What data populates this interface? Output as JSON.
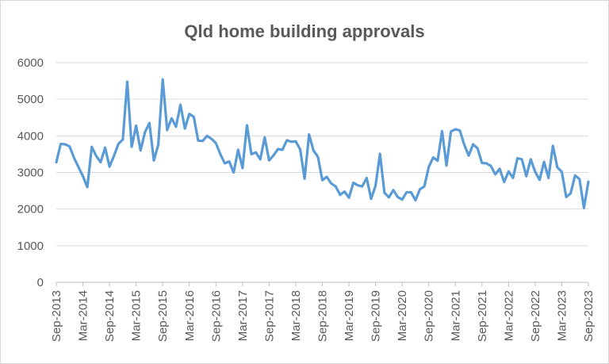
{
  "chart_data": {
    "type": "line",
    "title": "Qld home building approvals",
    "xlabel": "",
    "ylabel": "",
    "ylim": [
      0,
      6000
    ],
    "yticks": [
      0,
      1000,
      2000,
      3000,
      4000,
      5000,
      6000
    ],
    "ytick_labels": [
      "0",
      "1000",
      "2000",
      "3000",
      "4000",
      "5000",
      "6000"
    ],
    "grid": true,
    "legend": "none",
    "line_color": "#5b9bd5",
    "xtick_labels": [
      "Sep-2013",
      "Mar-2014",
      "Sep-2014",
      "Mar-2015",
      "Sep-2015",
      "Mar-2016",
      "Sep-2016",
      "Mar-2017",
      "Sep-2017",
      "Mar-2018",
      "Sep-2018",
      "Mar-2019",
      "Sep-2019",
      "Mar-2020",
      "Sep-2020",
      "Mar-2021",
      "Sep-2021",
      "Mar-2022",
      "Sep-2022",
      "Mar-2023",
      "Sep-2023"
    ],
    "x": [
      "2013-09",
      "2013-10",
      "2013-11",
      "2013-12",
      "2014-01",
      "2014-02",
      "2014-03",
      "2014-04",
      "2014-05",
      "2014-06",
      "2014-07",
      "2014-08",
      "2014-09",
      "2014-10",
      "2014-11",
      "2014-12",
      "2015-01",
      "2015-02",
      "2015-03",
      "2015-04",
      "2015-05",
      "2015-06",
      "2015-07",
      "2015-08",
      "2015-09",
      "2015-10",
      "2015-11",
      "2015-12",
      "2016-01",
      "2016-02",
      "2016-03",
      "2016-04",
      "2016-05",
      "2016-06",
      "2016-07",
      "2016-08",
      "2016-09",
      "2016-10",
      "2016-11",
      "2016-12",
      "2017-01",
      "2017-02",
      "2017-03",
      "2017-04",
      "2017-05",
      "2017-06",
      "2017-07",
      "2017-08",
      "2017-09",
      "2017-10",
      "2017-11",
      "2017-12",
      "2018-01",
      "2018-02",
      "2018-03",
      "2018-04",
      "2018-05",
      "2018-06",
      "2018-07",
      "2018-08",
      "2018-09",
      "2018-10",
      "2018-11",
      "2018-12",
      "2019-01",
      "2019-02",
      "2019-03",
      "2019-04",
      "2019-05",
      "2019-06",
      "2019-07",
      "2019-08",
      "2019-09",
      "2019-10",
      "2019-11",
      "2019-12",
      "2020-01",
      "2020-02",
      "2020-03",
      "2020-04",
      "2020-05",
      "2020-06",
      "2020-07",
      "2020-08",
      "2020-09",
      "2020-10",
      "2020-11",
      "2020-12",
      "2021-01",
      "2021-02",
      "2021-03",
      "2021-04",
      "2021-05",
      "2021-06",
      "2021-07",
      "2021-08",
      "2021-09",
      "2021-10",
      "2021-11",
      "2021-12",
      "2022-01",
      "2022-02",
      "2022-03",
      "2022-04",
      "2022-05",
      "2022-06",
      "2022-07",
      "2022-08",
      "2022-09",
      "2022-10",
      "2022-11",
      "2022-12",
      "2023-01",
      "2023-02",
      "2023-03",
      "2023-04",
      "2023-05",
      "2023-06",
      "2023-07",
      "2023-08",
      "2023-09"
    ],
    "series": [
      {
        "name": "",
        "values": [
          3280,
          3780,
          3770,
          3710,
          3400,
          3150,
          2900,
          2600,
          3700,
          3450,
          3280,
          3680,
          3160,
          3450,
          3780,
          3900,
          5480,
          3700,
          4280,
          3600,
          4100,
          4350,
          3330,
          3760,
          5540,
          4160,
          4480,
          4250,
          4850,
          4200,
          4600,
          4520,
          3870,
          3860,
          4000,
          3920,
          3800,
          3500,
          3250,
          3300,
          3000,
          3620,
          3120,
          4290,
          3500,
          3550,
          3360,
          3960,
          3330,
          3470,
          3640,
          3620,
          3880,
          3840,
          3850,
          3630,
          2830,
          4040,
          3600,
          3430,
          2790,
          2880,
          2700,
          2620,
          2390,
          2480,
          2310,
          2720,
          2650,
          2620,
          2850,
          2280,
          2640,
          3510,
          2450,
          2320,
          2520,
          2330,
          2260,
          2460,
          2460,
          2240,
          2540,
          2620,
          3150,
          3410,
          3320,
          4130,
          3190,
          4120,
          4180,
          4150,
          3760,
          3460,
          3770,
          3660,
          3260,
          3250,
          3180,
          2950,
          3100,
          2740,
          3030,
          2850,
          3390,
          3360,
          2900,
          3360,
          3020,
          2800,
          3290,
          2850,
          3730,
          3140,
          3020,
          2330,
          2430,
          2920,
          2820,
          2030,
          2750
        ]
      }
    ]
  }
}
